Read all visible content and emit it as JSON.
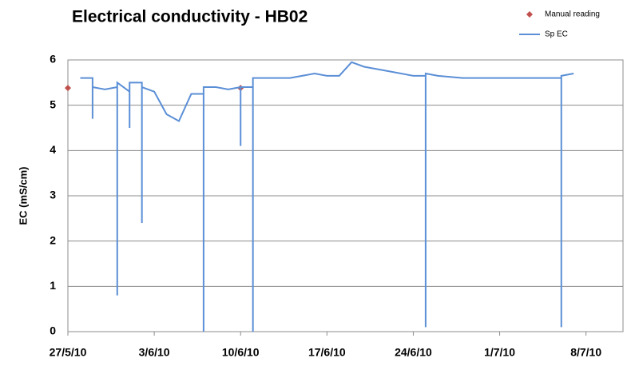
{
  "chart_data": {
    "type": "line",
    "title": "Electrical conductivity - HB02",
    "y_label": "EC (mS/cm)",
    "xlim": [
      "27/5/10",
      "11/7/10"
    ],
    "xticks": [
      "27/5/10",
      "3/6/10",
      "10/6/10",
      "17/6/10",
      "24/6/10",
      "1/7/10",
      "8/7/10"
    ],
    "ylim": [
      0,
      6
    ],
    "yticks": [
      0,
      1,
      2,
      3,
      4,
      5,
      6
    ],
    "grid": true,
    "legend": "top right",
    "series": [
      {
        "name": "Manual reading",
        "color": "#c0504d",
        "mode": "markers",
        "x": [
          "27/5/10",
          "10/6/10"
        ],
        "values": [
          5.38,
          5.38
        ]
      },
      {
        "name": "Sp EC",
        "color": "#5b8fd6",
        "mode": "lines",
        "x": [
          "28/5/10",
          "29/5/10",
          "29/5/10",
          "29/5/10",
          "30/5/10",
          "31/5/10",
          "31/5/10",
          "31/5/10",
          "1/6/10",
          "1/6/10",
          "1/6/10",
          "2/6/10",
          "2/6/10",
          "2/6/10",
          "3/6/10",
          "4/6/10",
          "5/6/10",
          "6/6/10",
          "7/6/10",
          "7/6/10",
          "7/6/10",
          "8/6/10",
          "9/6/10",
          "10/6/10",
          "10/6/10",
          "10/6/10",
          "11/6/10",
          "11/6/10",
          "11/6/10",
          "12/6/10",
          "14/6/10",
          "16/6/10",
          "17/6/10",
          "18/6/10",
          "19/6/10",
          "20/6/10",
          "22/6/10",
          "24/6/10",
          "25/6/10",
          "25/6/10",
          "25/6/10",
          "26/6/10",
          "28/6/10",
          "1/7/10",
          "4/7/10",
          "6/7/10",
          "6/7/10",
          "6/7/10",
          "7/7/10"
        ],
        "values": [
          5.6,
          5.6,
          4.7,
          5.4,
          5.35,
          5.4,
          0.8,
          5.5,
          5.3,
          4.5,
          5.5,
          5.5,
          2.4,
          5.4,
          5.3,
          4.8,
          4.65,
          5.25,
          5.25,
          0,
          5.4,
          5.4,
          5.35,
          5.4,
          4.1,
          5.4,
          5.4,
          0,
          5.6,
          5.6,
          5.6,
          5.7,
          5.65,
          5.65,
          5.95,
          5.85,
          5.75,
          5.65,
          5.65,
          0.1,
          5.7,
          5.65,
          5.6,
          5.6,
          5.6,
          5.6,
          0.1,
          5.65,
          5.7
        ]
      }
    ]
  }
}
